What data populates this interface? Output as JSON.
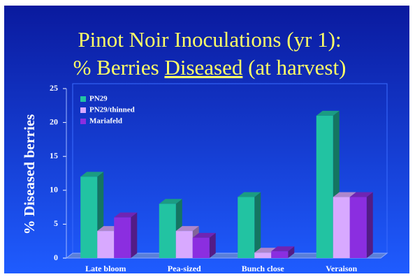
{
  "chart_data": {
    "type": "bar3d",
    "title": {
      "line1": "Pinot Noir Inoculations (yr 1):",
      "line2": [
        "% Berries ",
        "Diseased",
        " (at harvest)"
      ]
    },
    "y_label": "% Diseased berries",
    "categories": [
      "Late bloom",
      "Pea-sized",
      "Bunch close",
      "Veraison"
    ],
    "series": [
      {
        "name": "PN29",
        "color": "#22c3a2",
        "values": [
          12,
          8,
          9,
          21
        ]
      },
      {
        "name": "PN29/thinned",
        "color": "#d8a9ff",
        "values": [
          4,
          4,
          0.8,
          9
        ]
      },
      {
        "name": "Mariafeld",
        "color": "#8b2ee0",
        "values": [
          6,
          3,
          1,
          9
        ]
      }
    ],
    "ylim": [
      0,
      25
    ],
    "yticks": [
      0,
      5,
      10,
      15,
      20,
      25
    ],
    "legend": "top-left"
  }
}
